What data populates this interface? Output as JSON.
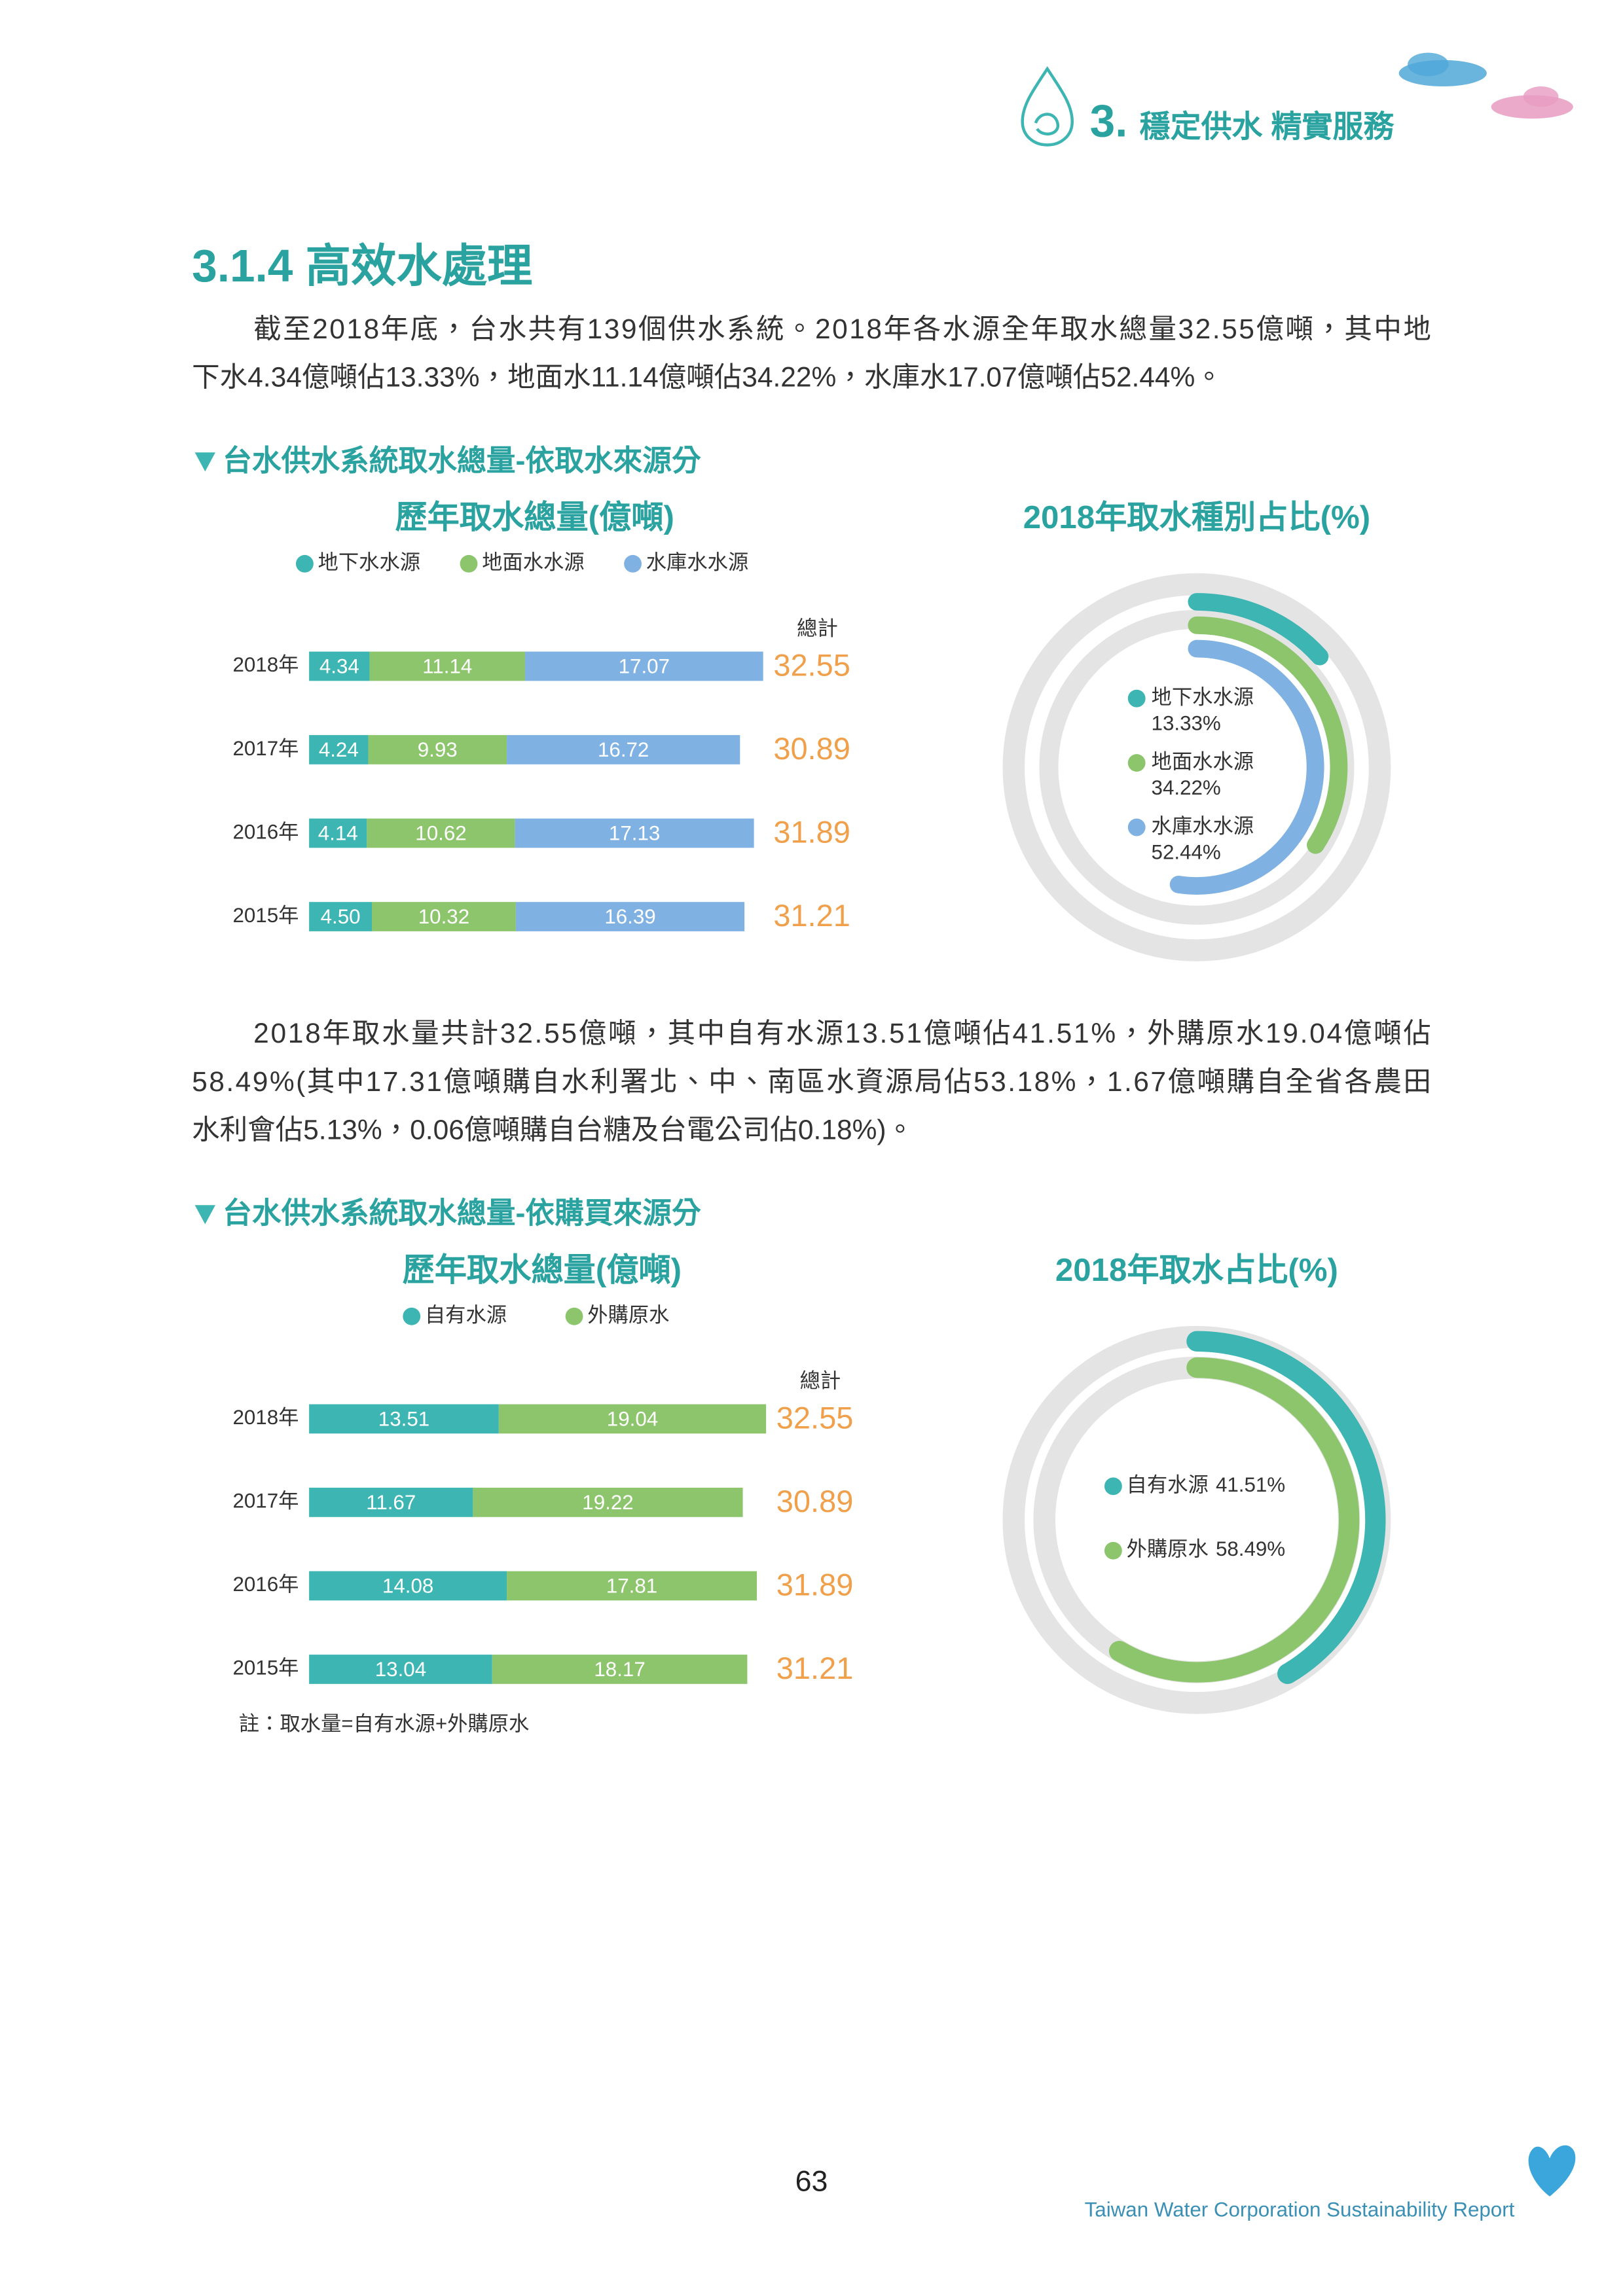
{
  "header": {
    "chapter_number": "3.",
    "chapter_title": "穩定供水 精實服務"
  },
  "section_title": "3.1.4 高效水處理",
  "paragraphs": [
    [
      "截至2018年底，台水共有139個供水系統。2018年各水源全年取水總量32.55億噸，其中地",
      "下水4.34億噸佔13.33%，地面水11.14億噸佔34.22%，水庫水17.07億噸佔52.44%。"
    ],
    [
      "2018年取水量共計32.55億噸，其中自有水源13.51億噸佔41.51%，外購原水19.04億噸佔",
      "58.49%(其中17.31億噸購自水利署北、中、南區水資源局佔53.18%，1.67億噸購自全省各農田",
      "水利會佔5.13%，0.06億噸購自台糖及台電公司佔0.18%)。"
    ]
  ],
  "subsections": [
    "台水供水系統取水總量-依取水來源分",
    "台水供水系統取水總量-依購買來源分"
  ],
  "note": "註：取水量=自有水源+外購原水",
  "footer": {
    "page_number": "63",
    "report_name": "Taiwan Water Corporation Sustainability Report"
  },
  "chart_data": [
    {
      "type": "bar",
      "orientation": "horizontal",
      "stacked": true,
      "title": "歷年取水總量(億噸)",
      "categories": [
        "2018年",
        "2017年",
        "2016年",
        "2015年"
      ],
      "series": [
        {
          "name": "地下水水源",
          "color": "#3db5b3",
          "values": [
            4.34,
            4.24,
            4.14,
            4.5
          ],
          "value_labels": [
            "4.34",
            "4.24",
            "4.14",
            "4.50"
          ]
        },
        {
          "name": "地面水水源",
          "color": "#8cc56b",
          "values": [
            11.14,
            9.93,
            10.62,
            10.32
          ],
          "value_labels": [
            "11.14",
            "9.93",
            "10.62",
            "10.32"
          ]
        },
        {
          "name": "水庫水水源",
          "color": "#7fb2e3",
          "values": [
            17.07,
            16.72,
            17.13,
            16.39
          ],
          "value_labels": [
            "17.07",
            "16.72",
            "17.13",
            "16.39"
          ]
        }
      ],
      "total_label": "總計",
      "totals": [
        32.55,
        30.89,
        31.89,
        31.21
      ],
      "totals_color": "#f0a04b"
    },
    {
      "type": "pie",
      "donut": true,
      "title": "2018年取水種別占比(%)",
      "categories": [
        "地下水水源",
        "地面水水源",
        "水庫水水源"
      ],
      "values": [
        13.33,
        34.22,
        52.44
      ],
      "value_labels": [
        "13.33%",
        "34.22%",
        "52.44%"
      ],
      "colors": [
        "#3db5b3",
        "#8cc56b",
        "#7fb2e3"
      ]
    },
    {
      "type": "bar",
      "orientation": "horizontal",
      "stacked": true,
      "title": "歷年取水總量(億噸)",
      "categories": [
        "2018年",
        "2017年",
        "2016年",
        "2015年"
      ],
      "series": [
        {
          "name": "自有水源",
          "color": "#3db5b3",
          "values": [
            13.51,
            11.67,
            14.08,
            13.04
          ],
          "value_labels": [
            "13.51",
            "11.67",
            "14.08",
            "13.04"
          ]
        },
        {
          "name": "外購原水",
          "color": "#8cc56b",
          "values": [
            19.04,
            19.22,
            17.81,
            18.17
          ],
          "value_labels": [
            "19.04",
            "19.22",
            "17.81",
            "18.17"
          ]
        }
      ],
      "total_label": "總計",
      "totals": [
        32.55,
        30.89,
        31.89,
        31.21
      ],
      "totals_color": "#f0a04b"
    },
    {
      "type": "pie",
      "donut": true,
      "title": "2018年取水占比(%)",
      "categories": [
        "自有水源",
        "外購原水"
      ],
      "values": [
        41.51,
        58.49
      ],
      "value_labels": [
        "41.51%",
        "58.49%"
      ],
      "colors": [
        "#3db5b3",
        "#8cc56b"
      ]
    }
  ]
}
